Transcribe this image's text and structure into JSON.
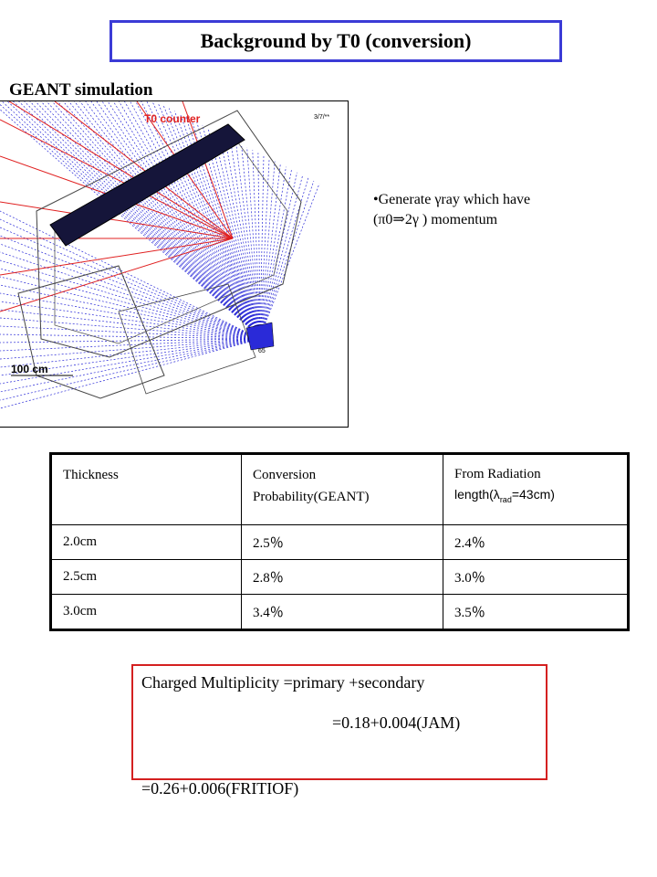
{
  "title": "Background by T0 (conversion)",
  "subtitle": "GEANT simulation",
  "simulation": {
    "label_counter": "T0 counter",
    "label_scale": "100 cm",
    "label_corner": "3/7/**",
    "label_hit": "65",
    "colors": {
      "red_tracks": "#e02020",
      "blue_tracks": "#2a2ad8",
      "detector": "#1a1a40"
    }
  },
  "bullet": {
    "line1": "•Generate γray which have",
    "line2": "(π0⇒2γ )  momentum"
  },
  "table": {
    "headers": {
      "col1": "Thickness",
      "col2_line1": "Conversion",
      "col2_line2": "Probability(GEANT)",
      "col3_line1": "From Radiation",
      "col3_pre": "length(λ",
      "col3_sub": "rad",
      "col3_post": "=43cm)"
    },
    "rows": [
      {
        "thickness": "2.0cm",
        "geant": "2.5％",
        "radiation": "2.4％"
      },
      {
        "thickness": "2.5cm",
        "geant": "2.8％",
        "radiation": "3.0％"
      },
      {
        "thickness": "3.0cm",
        "geant": "3.4％",
        "radiation": "3.5％"
      }
    ]
  },
  "multiplicity": {
    "line1": "Charged Multiplicity =primary +secondary",
    "line2": "=0.18+0.004(JAM)",
    "line3": "=0.26+0.006(FRITIOF)"
  }
}
